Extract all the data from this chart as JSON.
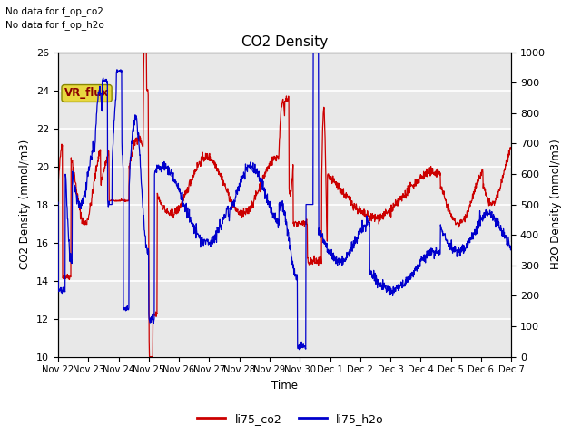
{
  "title": "CO2 Density",
  "xlabel": "Time",
  "ylabel_left": "CO2 Density (mmol/m3)",
  "ylabel_right": "H2O Density (mmol/m3)",
  "ylim_left": [
    10,
    26
  ],
  "ylim_right": [
    0,
    1000
  ],
  "yticks_left": [
    10,
    12,
    14,
    16,
    18,
    20,
    22,
    24,
    26
  ],
  "yticks_right": [
    0,
    100,
    200,
    300,
    400,
    500,
    600,
    700,
    800,
    900,
    1000
  ],
  "text_no_data_co2": "No data for f_op_co2",
  "text_no_data_h2o": "No data for f_op_h2o",
  "vr_flux_label": "VR_flux",
  "legend_co2": "li75_co2",
  "legend_h2o": "li75_h2o",
  "color_co2": "#cc0000",
  "color_h2o": "#0000cc",
  "background_color": "#e8e8e8",
  "xtick_labels": [
    "Nov 22",
    "Nov 23",
    "Nov 24",
    "Nov 25",
    "Nov 26",
    "Nov 27",
    "Nov 28",
    "Nov 29",
    "Nov 30",
    "Dec 1",
    "Dec 2",
    "Dec 3",
    "Dec 4",
    "Dec 5",
    "Dec 6",
    "Dec 7"
  ],
  "n_points": 1500,
  "figsize": [
    6.4,
    4.8
  ],
  "dpi": 100
}
